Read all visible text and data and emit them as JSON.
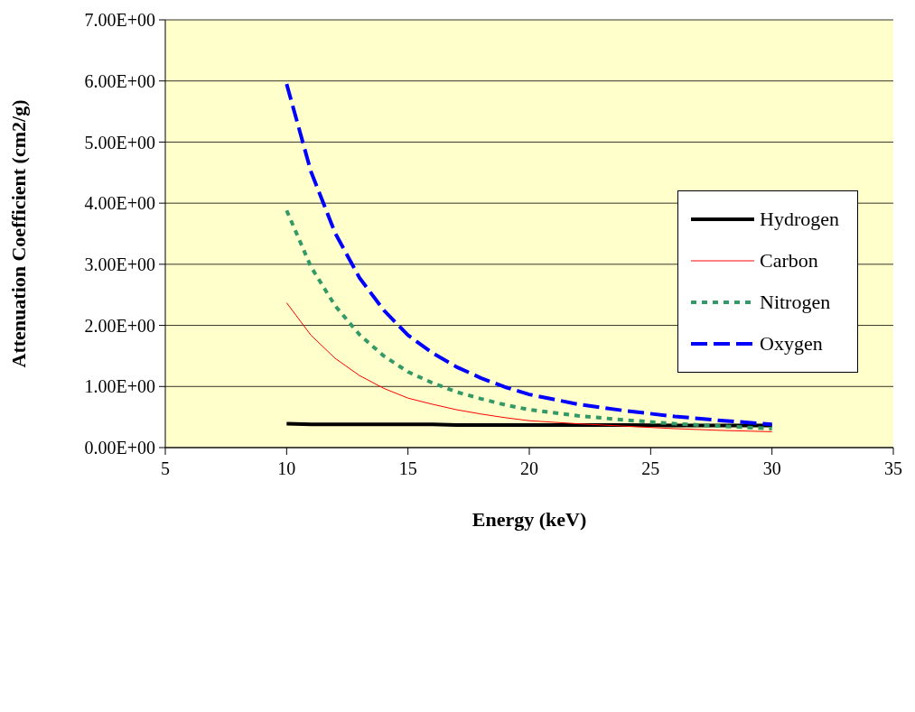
{
  "chart_data": {
    "type": "line",
    "xlabel": "Energy (keV)",
    "ylabel": "Attenuation Coefficient (cm2/g)",
    "x": [
      10,
      11,
      12,
      13,
      14,
      15,
      16,
      17,
      18,
      19,
      20,
      22,
      24,
      26,
      28,
      30
    ],
    "series": [
      {
        "name": "Hydrogen",
        "color": "#000000",
        "line_style": "solid",
        "values": [
          0.39,
          0.38,
          0.38,
          0.38,
          0.38,
          0.38,
          0.38,
          0.37,
          0.37,
          0.37,
          0.37,
          0.37,
          0.37,
          0.36,
          0.36,
          0.36
        ]
      },
      {
        "name": "Carbon",
        "color": "#ff0000",
        "line_style": "solid",
        "values": [
          2.37,
          1.84,
          1.46,
          1.18,
          0.97,
          0.81,
          0.71,
          0.62,
          0.55,
          0.49,
          0.44,
          0.39,
          0.35,
          0.31,
          0.28,
          0.26
        ]
      },
      {
        "name": "Nitrogen",
        "color": "#339966",
        "line_style": "dotted",
        "values": [
          3.88,
          2.96,
          2.32,
          1.85,
          1.5,
          1.24,
          1.06,
          0.91,
          0.8,
          0.7,
          0.62,
          0.52,
          0.45,
          0.39,
          0.35,
          0.31
        ]
      },
      {
        "name": "Oxygen",
        "color": "#0000ff",
        "line_style": "dashed",
        "values": [
          5.95,
          4.52,
          3.51,
          2.78,
          2.25,
          1.84,
          1.55,
          1.32,
          1.14,
          0.99,
          0.87,
          0.71,
          0.6,
          0.51,
          0.44,
          0.38
        ]
      }
    ],
    "xlim": [
      5,
      35
    ],
    "xticks": [
      5,
      10,
      15,
      20,
      25,
      30,
      35
    ],
    "ylim": [
      0,
      7
    ],
    "yticks": [
      {
        "value": 0,
        "label": "0.00E+00"
      },
      {
        "value": 1,
        "label": "1.00E+00"
      },
      {
        "value": 2,
        "label": "2.00E+00"
      },
      {
        "value": 3,
        "label": "3.00E+00"
      },
      {
        "value": 4,
        "label": "4.00E+00"
      },
      {
        "value": 5,
        "label": "5.00E+00"
      },
      {
        "value": 6,
        "label": "6.00E+00"
      },
      {
        "value": 7,
        "label": "7.00E+00"
      }
    ],
    "grid": "y",
    "legend": "right",
    "marker": "none"
  }
}
